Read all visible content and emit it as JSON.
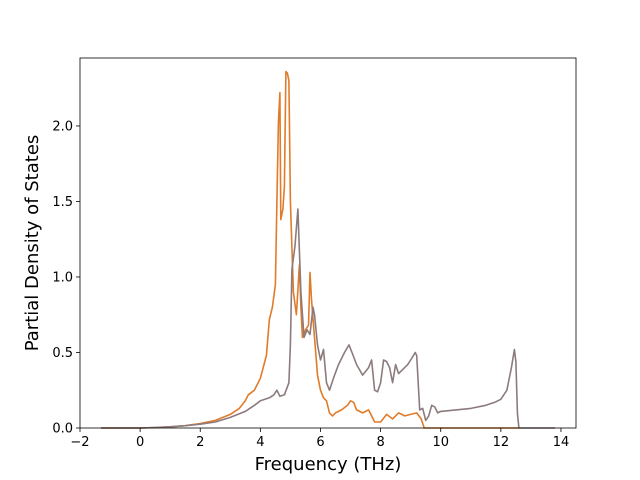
{
  "chart_data": {
    "type": "line",
    "xlabel": "Frequency (THz)",
    "ylabel": "Partial Density of States",
    "xlim": [
      -2,
      14.5
    ],
    "ylim": [
      0,
      2.45
    ],
    "grid": false,
    "x_ticks": [
      "−2",
      "0",
      "2",
      "4",
      "6",
      "8",
      "10",
      "12",
      "14"
    ],
    "y_ticks": [
      "0.0",
      "0.5",
      "1.0",
      "1.5",
      "2.0"
    ],
    "series": [
      {
        "color": "#e07b2a",
        "points": [
          [
            -1.3,
            0
          ],
          [
            0,
            0
          ],
          [
            0.5,
            0.003
          ],
          [
            1.0,
            0.008
          ],
          [
            1.5,
            0.015
          ],
          [
            2.0,
            0.03
          ],
          [
            2.5,
            0.05
          ],
          [
            3.0,
            0.09
          ],
          [
            3.3,
            0.13
          ],
          [
            3.5,
            0.18
          ],
          [
            3.6,
            0.22
          ],
          [
            3.8,
            0.25
          ],
          [
            4.0,
            0.33
          ],
          [
            4.2,
            0.48
          ],
          [
            4.3,
            0.72
          ],
          [
            4.4,
            0.8
          ],
          [
            4.5,
            0.95
          ],
          [
            4.55,
            1.5
          ],
          [
            4.6,
            2.02
          ],
          [
            4.65,
            2.22
          ],
          [
            4.68,
            1.38
          ],
          [
            4.75,
            1.45
          ],
          [
            4.8,
            1.6
          ],
          [
            4.85,
            2.36
          ],
          [
            4.9,
            2.35
          ],
          [
            4.95,
            2.3
          ],
          [
            5.0,
            1.5
          ],
          [
            5.1,
            0.9
          ],
          [
            5.2,
            0.75
          ],
          [
            5.3,
            1.08
          ],
          [
            5.35,
            0.8
          ],
          [
            5.4,
            0.6
          ],
          [
            5.5,
            0.65
          ],
          [
            5.6,
            0.68
          ],
          [
            5.65,
            1.03
          ],
          [
            5.7,
            0.85
          ],
          [
            5.8,
            0.6
          ],
          [
            5.9,
            0.35
          ],
          [
            6.0,
            0.25
          ],
          [
            6.1,
            0.2
          ],
          [
            6.2,
            0.18
          ],
          [
            6.3,
            0.1
          ],
          [
            6.4,
            0.08
          ],
          [
            6.5,
            0.1
          ],
          [
            6.7,
            0.12
          ],
          [
            6.9,
            0.15
          ],
          [
            7.0,
            0.18
          ],
          [
            7.1,
            0.17
          ],
          [
            7.2,
            0.12
          ],
          [
            7.4,
            0.1
          ],
          [
            7.6,
            0.12
          ],
          [
            7.7,
            0.08
          ],
          [
            7.8,
            0.04
          ],
          [
            8.0,
            0.04
          ],
          [
            8.2,
            0.09
          ],
          [
            8.4,
            0.06
          ],
          [
            8.6,
            0.1
          ],
          [
            8.8,
            0.08
          ],
          [
            9.0,
            0.09
          ],
          [
            9.2,
            0.1
          ],
          [
            9.35,
            0.06
          ],
          [
            9.45,
            0
          ],
          [
            12.6,
            0
          ]
        ]
      },
      {
        "color": "#8c7b7d",
        "points": [
          [
            -1.3,
            0
          ],
          [
            0,
            0
          ],
          [
            0.5,
            0.003
          ],
          [
            1.0,
            0.008
          ],
          [
            1.5,
            0.015
          ],
          [
            2.0,
            0.025
          ],
          [
            2.5,
            0.04
          ],
          [
            3.0,
            0.07
          ],
          [
            3.5,
            0.11
          ],
          [
            3.8,
            0.15
          ],
          [
            4.0,
            0.18
          ],
          [
            4.3,
            0.2
          ],
          [
            4.45,
            0.22
          ],
          [
            4.55,
            0.25
          ],
          [
            4.65,
            0.21
          ],
          [
            4.8,
            0.22
          ],
          [
            4.95,
            0.3
          ],
          [
            5.0,
            0.55
          ],
          [
            5.05,
            1.05
          ],
          [
            5.15,
            1.2
          ],
          [
            5.25,
            1.45
          ],
          [
            5.35,
            0.9
          ],
          [
            5.45,
            0.6
          ],
          [
            5.55,
            0.65
          ],
          [
            5.65,
            0.62
          ],
          [
            5.75,
            0.8
          ],
          [
            5.8,
            0.75
          ],
          [
            5.9,
            0.55
          ],
          [
            6.0,
            0.45
          ],
          [
            6.1,
            0.52
          ],
          [
            6.2,
            0.3
          ],
          [
            6.3,
            0.25
          ],
          [
            6.45,
            0.34
          ],
          [
            6.6,
            0.42
          ],
          [
            6.8,
            0.5
          ],
          [
            6.95,
            0.55
          ],
          [
            7.05,
            0.5
          ],
          [
            7.2,
            0.42
          ],
          [
            7.4,
            0.35
          ],
          [
            7.6,
            0.4
          ],
          [
            7.7,
            0.45
          ],
          [
            7.8,
            0.25
          ],
          [
            7.9,
            0.24
          ],
          [
            8.0,
            0.3
          ],
          [
            8.1,
            0.45
          ],
          [
            8.2,
            0.44
          ],
          [
            8.3,
            0.4
          ],
          [
            8.4,
            0.3
          ],
          [
            8.5,
            0.42
          ],
          [
            8.6,
            0.36
          ],
          [
            8.7,
            0.38
          ],
          [
            8.8,
            0.4
          ],
          [
            8.9,
            0.42
          ],
          [
            9.0,
            0.45
          ],
          [
            9.15,
            0.5
          ],
          [
            9.2,
            0.48
          ],
          [
            9.3,
            0.12
          ],
          [
            9.4,
            0.13
          ],
          [
            9.5,
            0.05
          ],
          [
            9.6,
            0.08
          ],
          [
            9.7,
            0.15
          ],
          [
            9.8,
            0.14
          ],
          [
            9.9,
            0.1
          ],
          [
            10.0,
            0.11
          ],
          [
            10.5,
            0.12
          ],
          [
            11.0,
            0.13
          ],
          [
            11.5,
            0.15
          ],
          [
            11.8,
            0.17
          ],
          [
            12.0,
            0.19
          ],
          [
            12.2,
            0.25
          ],
          [
            12.35,
            0.4
          ],
          [
            12.45,
            0.52
          ],
          [
            12.5,
            0.44
          ],
          [
            12.55,
            0.1
          ],
          [
            12.6,
            0
          ],
          [
            13.8,
            0
          ]
        ]
      }
    ]
  }
}
